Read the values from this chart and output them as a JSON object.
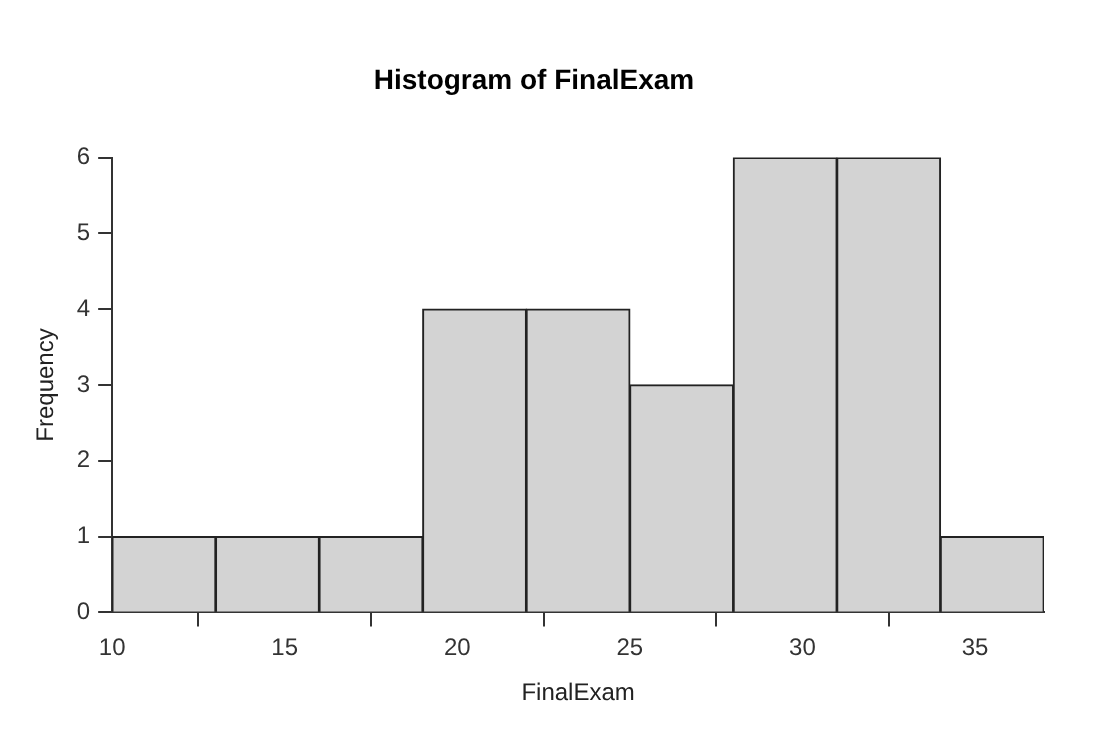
{
  "chart_data": {
    "type": "histogram",
    "title": "Histogram of FinalExam",
    "xlabel": "FinalExam",
    "ylabel": "Frequency",
    "bins": [
      10,
      13,
      16,
      19,
      22,
      25,
      28,
      31,
      34,
      37
    ],
    "values": [
      1,
      1,
      1,
      4,
      4,
      3,
      6,
      6,
      1
    ],
    "color": "#d3d3d3",
    "xlim": [
      10,
      37
    ],
    "xticks": [
      10,
      15,
      20,
      25,
      30,
      35
    ],
    "ylim": [
      0,
      6
    ],
    "yticks": [
      0,
      1,
      2,
      3,
      4,
      5,
      6
    ],
    "grid": false,
    "legend": false
  }
}
